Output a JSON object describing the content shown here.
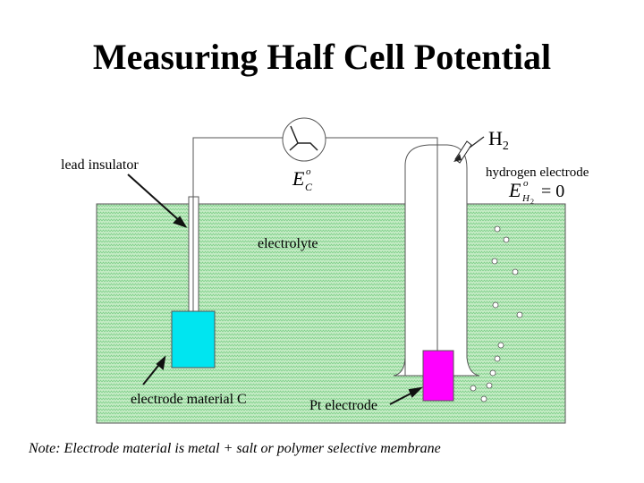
{
  "title": "Measuring Half Cell Potential",
  "diagram": {
    "labels": {
      "lead_insulator": "lead insulator",
      "electrolyte": "electrolyte",
      "electrode_material": "electrode material C",
      "pt_electrode": "Pt electrode",
      "h2": "H",
      "h2_sub": "2",
      "hydrogen_electrode": "hydrogen electrode",
      "ec_E": "E",
      "ec_sup": "o",
      "ec_sub": "C",
      "eh_E": "E",
      "eh_sup": "o",
      "eh_sub": "H",
      "eh_sub2": "2",
      "eh_value": "= 0"
    },
    "colors": {
      "electrolyte": "#b9e6b9",
      "electrode_c": "#00e5f0",
      "pt_electrode": "#ff00ff"
    }
  },
  "note": "Note: Electrode material is metal + salt or polymer selective membrane"
}
